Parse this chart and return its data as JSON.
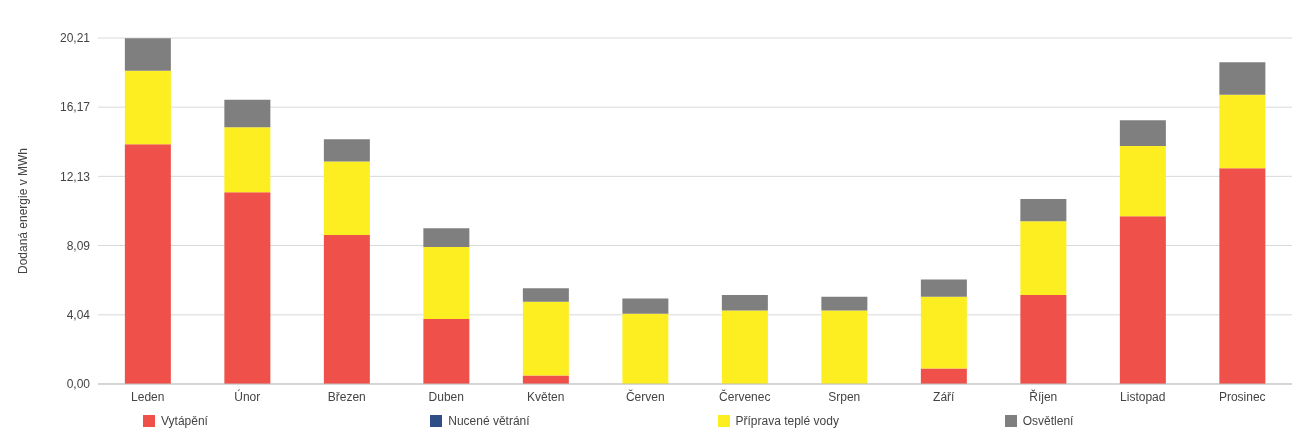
{
  "chart_data": {
    "type": "bar",
    "stacked": true,
    "ylabel": "Dodaná energie v MWh",
    "categories": [
      "Leden",
      "Únor",
      "Březen",
      "Duben",
      "Květen",
      "Červen",
      "Červenec",
      "Srpen",
      "Září",
      "Říjen",
      "Listopad",
      "Prosinec"
    ],
    "series": [
      {
        "name": "Vytápění",
        "color": "#f0504a",
        "values": [
          14.0,
          11.2,
          8.7,
          3.8,
          0.5,
          0,
          0,
          0,
          0.9,
          5.2,
          9.8,
          12.6
        ]
      },
      {
        "name": "Nucené větrání",
        "color": "#2f4d86",
        "values": [
          0,
          0,
          0,
          0,
          0,
          0,
          0,
          0,
          0,
          0,
          0,
          0
        ]
      },
      {
        "name": "Příprava teplé vody",
        "color": "#fcee21",
        "values": [
          4.3,
          3.8,
          4.3,
          4.2,
          4.3,
          4.1,
          4.3,
          4.3,
          4.2,
          4.3,
          4.1,
          4.3
        ]
      },
      {
        "name": "Osvětlení",
        "color": "#7f7f7f",
        "values": [
          1.9,
          1.6,
          1.3,
          1.1,
          0.8,
          0.9,
          0.9,
          0.8,
          1.0,
          1.3,
          1.5,
          1.9
        ]
      }
    ],
    "ylim": [
      0,
      20.21
    ],
    "yticks": [
      {
        "value": 0,
        "label": "0,00"
      },
      {
        "value": 4.04,
        "label": "4,04"
      },
      {
        "value": 8.09,
        "label": "8,09"
      },
      {
        "value": 12.13,
        "label": "12,13"
      },
      {
        "value": 16.17,
        "label": "16,17"
      },
      {
        "value": 20.21,
        "label": "20,21"
      }
    ],
    "grid": "y",
    "legend": "bottom"
  }
}
